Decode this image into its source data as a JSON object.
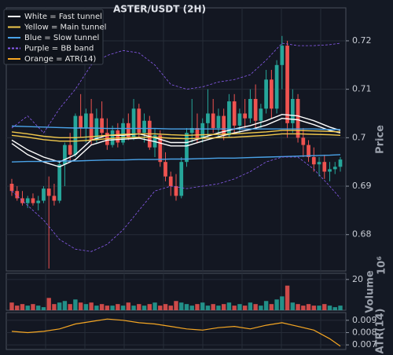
{
  "chart_data": [
    {
      "type": "candlestick",
      "title": "ASTER/USDT (2H)",
      "y_label": "Price",
      "grid": true,
      "legend": "upper left",
      "up_color": "#26a69a",
      "down_color": "#ef5350",
      "ylim": [
        0.6725,
        0.7268
      ],
      "yticks": [
        0.68,
        0.69,
        0.7,
        0.71,
        0.72
      ],
      "ohlc": [
        [
          0.6905,
          0.6915,
          0.688,
          0.689
        ],
        [
          0.689,
          0.69,
          0.687,
          0.6875
        ],
        [
          0.6875,
          0.689,
          0.686,
          0.6865
        ],
        [
          0.6865,
          0.688,
          0.6855,
          0.6875
        ],
        [
          0.6875,
          0.6885,
          0.686,
          0.6865
        ],
        [
          0.6865,
          0.688,
          0.685,
          0.687
        ],
        [
          0.687,
          0.69,
          0.6865,
          0.6895
        ],
        [
          0.6895,
          0.692,
          0.673,
          0.688
        ],
        [
          0.688,
          0.6905,
          0.686,
          0.687
        ],
        [
          0.687,
          0.695,
          0.6865,
          0.6945
        ],
        [
          0.6945,
          0.699,
          0.69,
          0.6985
        ],
        [
          0.6985,
          0.701,
          0.695,
          0.6965
        ],
        [
          0.6965,
          0.705,
          0.696,
          0.7045
        ],
        [
          0.7045,
          0.709,
          0.7,
          0.702
        ],
        [
          0.702,
          0.706,
          0.699,
          0.705
        ],
        [
          0.705,
          0.708,
          0.6985,
          0.6995
        ],
        [
          0.6995,
          0.706,
          0.699,
          0.704
        ],
        [
          0.704,
          0.7075,
          0.7,
          0.701
        ],
        [
          0.701,
          0.704,
          0.6975,
          0.6985
        ],
        [
          0.6985,
          0.7025,
          0.698,
          0.7015
        ],
        [
          0.7015,
          0.703,
          0.698,
          0.699
        ],
        [
          0.699,
          0.704,
          0.6985,
          0.703
        ],
        [
          0.703,
          0.705,
          0.6995,
          0.7
        ],
        [
          0.7,
          0.708,
          0.6995,
          0.706
        ],
        [
          0.706,
          0.707,
          0.7,
          0.701
        ],
        [
          0.701,
          0.705,
          0.699,
          0.7035
        ],
        [
          0.7035,
          0.7045,
          0.6975,
          0.698
        ],
        [
          0.698,
          0.702,
          0.696,
          0.7005
        ],
        [
          0.7005,
          0.7015,
          0.694,
          0.695
        ],
        [
          0.695,
          0.697,
          0.691,
          0.692
        ],
        [
          0.692,
          0.693,
          0.688,
          0.69
        ],
        [
          0.69,
          0.6925,
          0.687,
          0.688
        ],
        [
          0.688,
          0.696,
          0.6875,
          0.695
        ],
        [
          0.695,
          0.702,
          0.694,
          0.701
        ],
        [
          0.701,
          0.708,
          0.699,
          0.702
        ],
        [
          0.702,
          0.705,
          0.699,
          0.7
        ],
        [
          0.7,
          0.704,
          0.699,
          0.703
        ],
        [
          0.703,
          0.71,
          0.7,
          0.705
        ],
        [
          0.705,
          0.708,
          0.701,
          0.702
        ],
        [
          0.702,
          0.706,
          0.7,
          0.7045
        ],
        [
          0.7045,
          0.706,
          0.6995,
          0.7005
        ],
        [
          0.7005,
          0.709,
          0.7,
          0.7075
        ],
        [
          0.7075,
          0.709,
          0.701,
          0.7025
        ],
        [
          0.7025,
          0.706,
          0.701,
          0.705
        ],
        [
          0.705,
          0.708,
          0.702,
          0.704
        ],
        [
          0.704,
          0.71,
          0.703,
          0.708
        ],
        [
          0.708,
          0.711,
          0.702,
          0.7035
        ],
        [
          0.7035,
          0.707,
          0.702,
          0.706
        ],
        [
          0.706,
          0.714,
          0.705,
          0.712
        ],
        [
          0.712,
          0.714,
          0.704,
          0.706
        ],
        [
          0.706,
          0.716,
          0.705,
          0.715
        ],
        [
          0.715,
          0.721,
          0.71,
          0.719
        ],
        [
          0.719,
          0.72,
          0.7,
          0.703
        ],
        [
          0.703,
          0.71,
          0.701,
          0.708
        ],
        [
          0.708,
          0.709,
          0.699,
          0.7
        ],
        [
          0.7,
          0.702,
          0.696,
          0.6985
        ],
        [
          0.6985,
          0.6995,
          0.695,
          0.696
        ],
        [
          0.696,
          0.698,
          0.693,
          0.6945
        ],
        [
          0.6945,
          0.696,
          0.692,
          0.695
        ],
        [
          0.695,
          0.6965,
          0.6915,
          0.693
        ],
        [
          0.693,
          0.695,
          0.691,
          0.6935
        ],
        [
          0.6935,
          0.695,
          0.6925,
          0.694
        ],
        [
          0.694,
          0.696,
          0.693,
          0.6955
        ]
      ],
      "line_x": [
        0,
        3,
        6,
        9,
        12,
        15,
        18,
        21,
        24,
        27,
        30,
        33,
        36,
        39,
        42,
        45,
        48,
        51,
        54,
        57,
        60,
        62
      ],
      "series": [
        {
          "name": "White = Fast tunnel",
          "color": "#ffffff",
          "upper": [
            0.6995,
            0.6975,
            0.696,
            0.695,
            0.6965,
            0.6995,
            0.7005,
            0.7005,
            0.7008,
            0.7,
            0.699,
            0.699,
            0.7,
            0.701,
            0.7018,
            0.7025,
            0.7035,
            0.7048,
            0.7045,
            0.7035,
            0.7022,
            0.7015
          ],
          "lower": [
            0.6988,
            0.6965,
            0.695,
            0.694,
            0.6955,
            0.6985,
            0.6995,
            0.6997,
            0.6999,
            0.6992,
            0.6983,
            0.6983,
            0.6993,
            0.7002,
            0.701,
            0.7017,
            0.7026,
            0.704,
            0.7037,
            0.7027,
            0.7015,
            0.701
          ]
        },
        {
          "name": "Yellow = Main tunnel",
          "color": "#f2c94c",
          "upper": [
            0.7012,
            0.7008,
            0.7003,
            0.7,
            0.7,
            0.7002,
            0.7005,
            0.7007,
            0.7008,
            0.7008,
            0.7006,
            0.7005,
            0.7006,
            0.7007,
            0.7008,
            0.701,
            0.7012,
            0.7015,
            0.7015,
            0.7014,
            0.7013,
            0.7012
          ],
          "lower": [
            0.7005,
            0.7001,
            0.6996,
            0.6993,
            0.6993,
            0.6995,
            0.6998,
            0.7,
            0.7001,
            0.7001,
            0.6999,
            0.6998,
            0.6999,
            0.7,
            0.7001,
            0.7003,
            0.7005,
            0.7008,
            0.7008,
            0.7007,
            0.7006,
            0.7005
          ]
        },
        {
          "name": "Blue = Slow tunnel",
          "color": "#4aa3e8",
          "upper": [
            0.7024,
            0.7023,
            0.7022,
            0.7021,
            0.702,
            0.702,
            0.7019,
            0.7019,
            0.7019,
            0.7019,
            0.7018,
            0.7018,
            0.7018,
            0.7018,
            0.7018,
            0.7018,
            0.7018,
            0.7018,
            0.7018,
            0.7018,
            0.7017,
            0.7017
          ],
          "lower": [
            0.695,
            0.6951,
            0.6951,
            0.6952,
            0.6952,
            0.6953,
            0.6954,
            0.6954,
            0.6955,
            0.6955,
            0.6956,
            0.6956,
            0.6957,
            0.6958,
            0.6958,
            0.6959,
            0.696,
            0.6961,
            0.6962,
            0.6963,
            0.6964,
            0.6965
          ]
        },
        {
          "name": "Purple = BB band",
          "color": "#8a5cf0",
          "dashed": true,
          "upper": [
            0.702,
            0.7045,
            0.701,
            0.706,
            0.71,
            0.715,
            0.717,
            0.718,
            0.7175,
            0.715,
            0.711,
            0.71,
            0.7105,
            0.7115,
            0.712,
            0.713,
            0.716,
            0.7195,
            0.719,
            0.719,
            0.7192,
            0.7195
          ],
          "lower": [
            0.689,
            0.686,
            0.683,
            0.679,
            0.677,
            0.6765,
            0.678,
            0.681,
            0.685,
            0.689,
            0.69,
            0.6895,
            0.69,
            0.6905,
            0.6915,
            0.693,
            0.695,
            0.696,
            0.696,
            0.6935,
            0.69,
            0.6875
          ]
        },
        {
          "name": "Orange = ATR(14)",
          "color": "#f5a623"
        }
      ]
    },
    {
      "type": "bar",
      "y_label": "Volume",
      "offset_label": "10⁶",
      "ylim": [
        0,
        24
      ],
      "yticks": [
        20
      ],
      "values": [
        5,
        3,
        4,
        3,
        4,
        3,
        2,
        8,
        4,
        5,
        6,
        4,
        7,
        5,
        4,
        5,
        3,
        4,
        3,
        3,
        4,
        3,
        5,
        3,
        4,
        3,
        4,
        5,
        3,
        4,
        3,
        6,
        5,
        4,
        3,
        4,
        5,
        3,
        4,
        3,
        4,
        5,
        3,
        4,
        3,
        5,
        4,
        3,
        6,
        4,
        7,
        9,
        16,
        5,
        4,
        3,
        4,
        3,
        3,
        4,
        3,
        2,
        3
      ]
    },
    {
      "type": "line",
      "y_label": "ATR(14)",
      "color": "#f5a623",
      "ylim": [
        0.006625,
        0.009625
      ],
      "yticks": [
        0.007,
        0.008,
        0.009
      ],
      "x": [
        0,
        3,
        6,
        9,
        12,
        15,
        18,
        21,
        24,
        27,
        30,
        33,
        36,
        39,
        42,
        45,
        48,
        51,
        54,
        57,
        60,
        62
      ],
      "values": [
        0.0081,
        0.008,
        0.0081,
        0.0083,
        0.0087,
        0.0089,
        0.0091,
        0.009,
        0.0088,
        0.0087,
        0.0085,
        0.0083,
        0.0082,
        0.0084,
        0.0085,
        0.0083,
        0.0086,
        0.0088,
        0.0085,
        0.0082,
        0.0075,
        0.0069
      ]
    }
  ]
}
